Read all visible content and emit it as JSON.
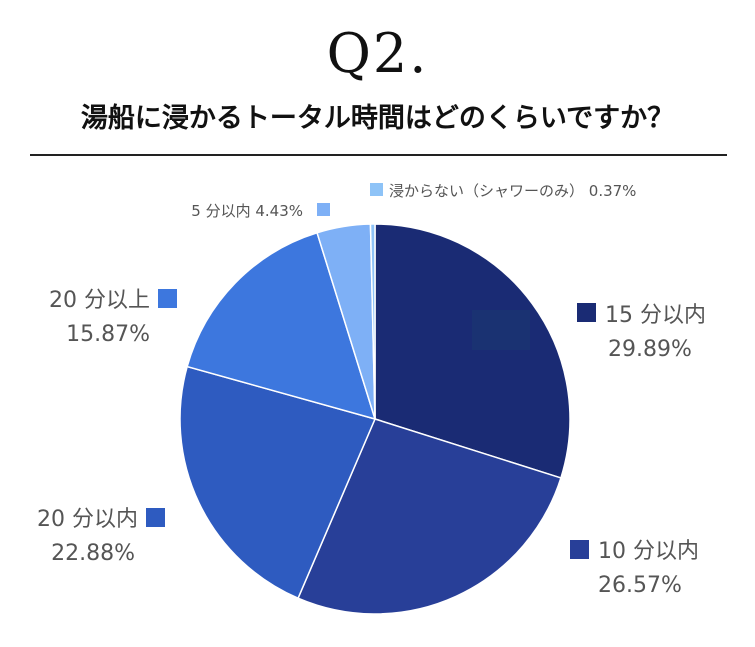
{
  "question": {
    "number": "Q2.",
    "text": "湯船に浸かるトータル時間はどのくらいですか？"
  },
  "colors": {
    "slice_15min": "#1a2b74",
    "slice_10min": "#283f98",
    "slice_20min_within": "#2e5bc0",
    "slice_20min_over": "#3d77de",
    "slice_5min": "#7eb0f6",
    "slice_none": "#8ec3f7",
    "label_text": "#555555"
  },
  "chart_data": {
    "type": "pie",
    "title": "湯船に浸かるトータル時間はどのくらいですか？",
    "slices": [
      {
        "label": "15 分以内",
        "value": 29.89,
        "display": "29.89%"
      },
      {
        "label": "10 分以内",
        "value": 26.57,
        "display": "26.57%"
      },
      {
        "label": "20 分以内",
        "value": 22.88,
        "display": "22.88%"
      },
      {
        "label": "20 分以上",
        "value": 15.87,
        "display": "15.87%"
      },
      {
        "label": "5 分以内",
        "value": 4.43,
        "display": "4.43%"
      },
      {
        "label": "浸からない（シャワーのみ）",
        "value": 0.37,
        "display": "0.37%"
      }
    ],
    "unit": "%"
  }
}
